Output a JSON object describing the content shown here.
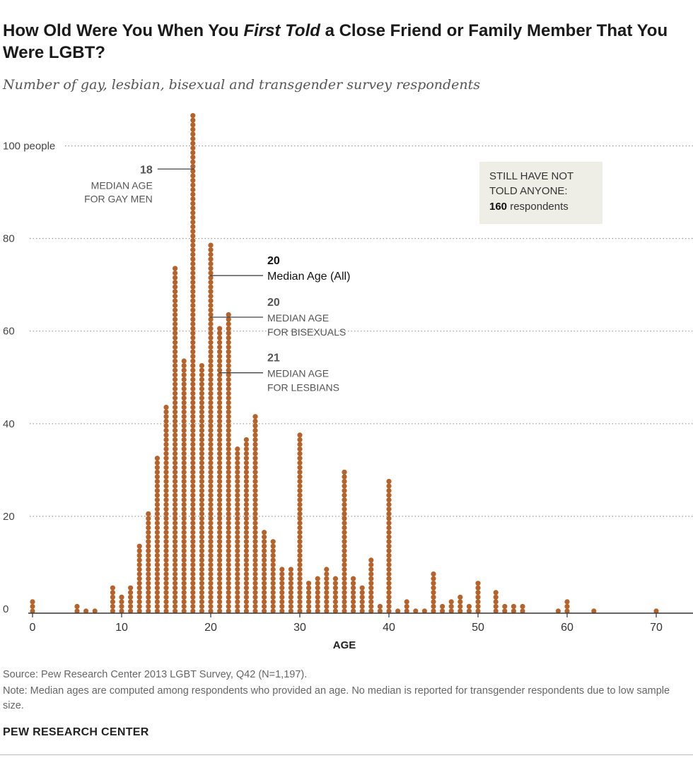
{
  "title": {
    "part1": "How Old Were You When You ",
    "emphasis": "First Told",
    "part2": " a Close Friend or Family Member That You Were LGBT?"
  },
  "subtitle": "Number of gay, lesbian, bisexual and transgender survey respondents",
  "annotation_box": {
    "line1": "STILL HAVE NOT",
    "line2": "TOLD ANYONE:",
    "count": "160",
    "suffix": " respondents"
  },
  "footer": {
    "source": "Source: Pew Research Center 2013 LGBT Survey, Q42 (N=1,197).",
    "note": "Note: Median ages are computed among respondents who provided an age. No median is reported for transgender respondents due to low sample size.",
    "brand": "PEW RESEARCH CENTER"
  },
  "colors": {
    "bar": "#b5632b",
    "grid": "#999999",
    "text": "#222222",
    "muted": "#555555"
  },
  "chart_data": {
    "type": "bar",
    "style": "dot-column",
    "title": "How Old Were You When You First Told a Close Friend or Family Member That You Were LGBT?",
    "subtitle": "Number of gay, lesbian, bisexual and transgender survey respondents",
    "xlabel": "AGE",
    "ylabel": "",
    "xlim": [
      0,
      73
    ],
    "ylim": [
      0,
      108
    ],
    "xticks": [
      0,
      10,
      20,
      30,
      40,
      50,
      60,
      70
    ],
    "yticks": [
      {
        "value": 0,
        "label": "0"
      },
      {
        "value": 20,
        "label": "20"
      },
      {
        "value": 40,
        "label": "40"
      },
      {
        "value": 60,
        "label": "60"
      },
      {
        "value": 80,
        "label": "80"
      },
      {
        "value": 100,
        "label": "100 people"
      }
    ],
    "grid": true,
    "points": [
      {
        "age": 0,
        "count": 3
      },
      {
        "age": 5,
        "count": 2
      },
      {
        "age": 6,
        "count": 1
      },
      {
        "age": 7,
        "count": 1
      },
      {
        "age": 9,
        "count": 6
      },
      {
        "age": 10,
        "count": 4
      },
      {
        "age": 11,
        "count": 6
      },
      {
        "age": 12,
        "count": 15
      },
      {
        "age": 13,
        "count": 22
      },
      {
        "age": 14,
        "count": 34
      },
      {
        "age": 15,
        "count": 45
      },
      {
        "age": 16,
        "count": 75
      },
      {
        "age": 17,
        "count": 55
      },
      {
        "age": 18,
        "count": 108
      },
      {
        "age": 19,
        "count": 54
      },
      {
        "age": 20,
        "count": 80
      },
      {
        "age": 21,
        "count": 62
      },
      {
        "age": 22,
        "count": 65
      },
      {
        "age": 23,
        "count": 36
      },
      {
        "age": 24,
        "count": 38
      },
      {
        "age": 25,
        "count": 43
      },
      {
        "age": 26,
        "count": 18
      },
      {
        "age": 27,
        "count": 16
      },
      {
        "age": 28,
        "count": 10
      },
      {
        "age": 29,
        "count": 10
      },
      {
        "age": 30,
        "count": 39
      },
      {
        "age": 31,
        "count": 7
      },
      {
        "age": 32,
        "count": 8
      },
      {
        "age": 33,
        "count": 10
      },
      {
        "age": 34,
        "count": 8
      },
      {
        "age": 35,
        "count": 31
      },
      {
        "age": 36,
        "count": 8
      },
      {
        "age": 37,
        "count": 6
      },
      {
        "age": 38,
        "count": 12
      },
      {
        "age": 39,
        "count": 2
      },
      {
        "age": 40,
        "count": 29
      },
      {
        "age": 41,
        "count": 1
      },
      {
        "age": 42,
        "count": 3
      },
      {
        "age": 43,
        "count": 1
      },
      {
        "age": 44,
        "count": 1
      },
      {
        "age": 45,
        "count": 9
      },
      {
        "age": 46,
        "count": 2
      },
      {
        "age": 47,
        "count": 3
      },
      {
        "age": 48,
        "count": 4
      },
      {
        "age": 49,
        "count": 2
      },
      {
        "age": 50,
        "count": 7
      },
      {
        "age": 52,
        "count": 5
      },
      {
        "age": 53,
        "count": 2
      },
      {
        "age": 54,
        "count": 2
      },
      {
        "age": 55,
        "count": 2
      },
      {
        "age": 59,
        "count": 1
      },
      {
        "age": 60,
        "count": 3
      },
      {
        "age": 63,
        "count": 1
      },
      {
        "age": 70,
        "count": 1
      }
    ],
    "medians": [
      {
        "age": 18,
        "value_label": "18",
        "line1": "MEDIAN AGE",
        "line2": "FOR GAY MEN",
        "bold": false,
        "at_count": 95,
        "side": "left"
      },
      {
        "age": 20,
        "value_label": "20",
        "line1": "Median Age (All)",
        "line2": "",
        "bold": true,
        "at_count": 72,
        "side": "right"
      },
      {
        "age": 20,
        "value_label": "20",
        "line1": "MEDIAN AGE",
        "line2": "FOR BISEXUALS",
        "bold": false,
        "at_count": 63,
        "side": "right"
      },
      {
        "age": 21,
        "value_label": "21",
        "line1": "MEDIAN AGE",
        "line2": "FOR LESBIANS",
        "bold": false,
        "at_count": 51,
        "side": "right"
      }
    ]
  }
}
